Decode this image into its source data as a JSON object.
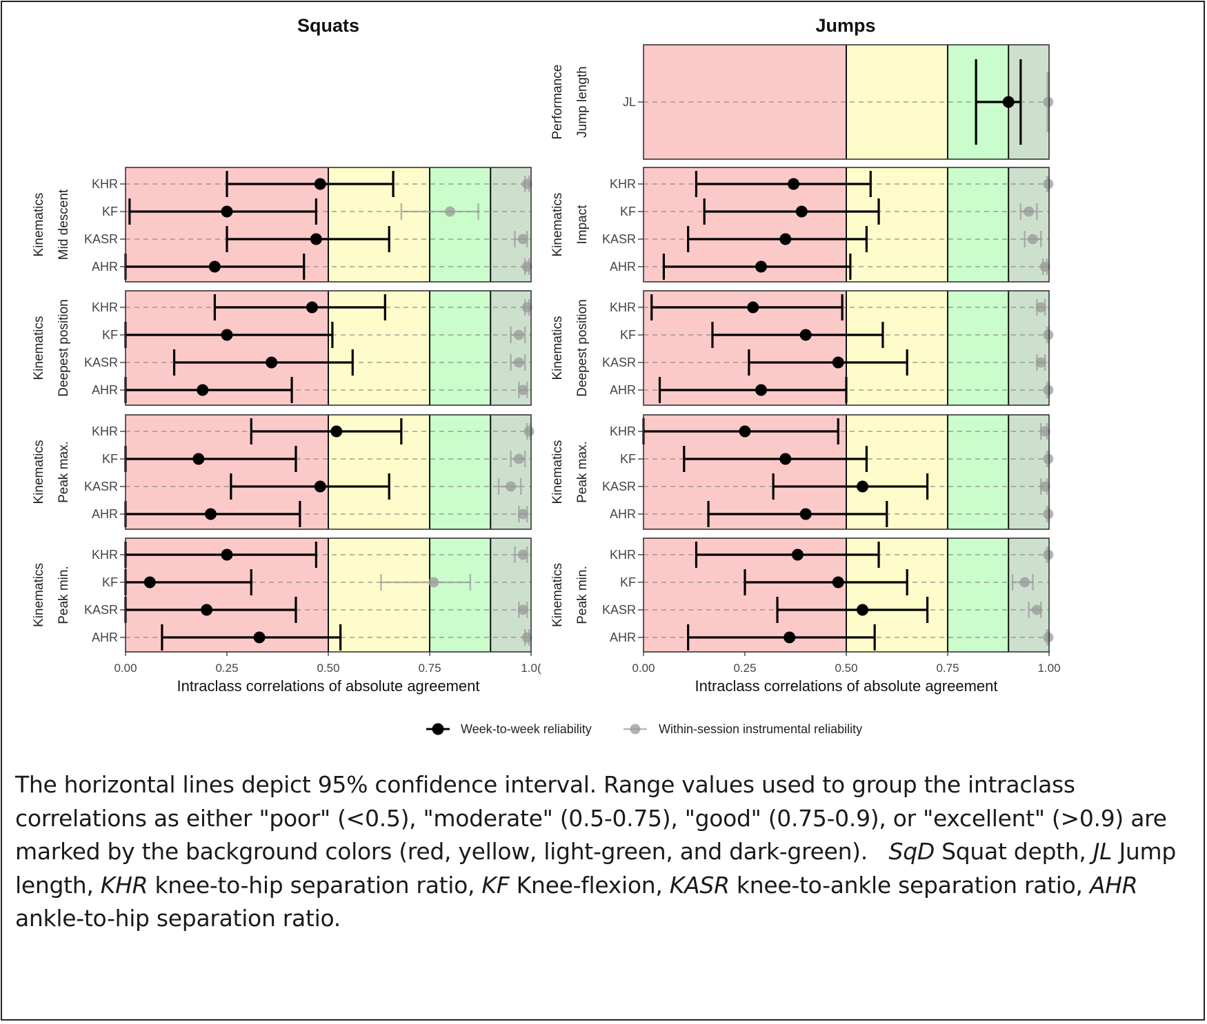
{
  "colors": {
    "poor": "#fcc9c9",
    "moderate": "#fdfcca",
    "good": "#cbfccb",
    "excellent": "#cde0cd",
    "week": "#000000",
    "within": "#9a9a9a"
  },
  "chart_data": {
    "type": "forest",
    "xlabel": "Intraclass correlations of absolute agreement",
    "xlim": [
      0,
      1
    ],
    "thresholds": [
      0.5,
      0.75,
      0.9
    ],
    "ticks": [
      {
        "value": 0,
        "label": "0.00"
      },
      {
        "value": 0.25,
        "label": "0.25"
      },
      {
        "value": 0.5,
        "label": "0.50"
      },
      {
        "value": 0.75,
        "label": "0.75"
      },
      {
        "value": 1,
        "label": "1.00"
      }
    ],
    "squats_tick_last_label": "1.0(",
    "legend": {
      "week": "Week-to-week reliability",
      "within": "Within-session instrumental reliability"
    },
    "columns": [
      {
        "title": "Squats",
        "panels": [
          {
            "strip1": "Kinematics",
            "strip2": "Mid descent",
            "rows": [
              {
                "label": "KHR",
                "week": [
                  0.48,
                  0.25,
                  0.66
                ],
                "within": [
                  0.99,
                  0.985,
                  0.995
                ]
              },
              {
                "label": "KF",
                "week": [
                  0.25,
                  0.01,
                  0.47
                ],
                "within": [
                  0.8,
                  0.68,
                  0.87
                ]
              },
              {
                "label": "KASR",
                "week": [
                  0.47,
                  0.25,
                  0.65
                ],
                "within": [
                  0.98,
                  0.96,
                  0.99
                ]
              },
              {
                "label": "AHR",
                "week": [
                  0.22,
                  0.0,
                  0.44
                ],
                "within": [
                  0.99,
                  0.985,
                  0.995
                ]
              }
            ]
          },
          {
            "strip1": "Kinematics",
            "strip2": "Deepest position",
            "rows": [
              {
                "label": "KHR",
                "week": [
                  0.46,
                  0.22,
                  0.64
                ],
                "within": [
                  0.99,
                  0.985,
                  0.995
                ]
              },
              {
                "label": "KF",
                "week": [
                  0.25,
                  0.0,
                  0.51
                ],
                "within": [
                  0.97,
                  0.95,
                  0.985
                ]
              },
              {
                "label": "KASR",
                "week": [
                  0.36,
                  0.12,
                  0.56
                ],
                "within": [
                  0.97,
                  0.95,
                  0.985
                ]
              },
              {
                "label": "AHR",
                "week": [
                  0.19,
                  0.0,
                  0.41
                ],
                "within": [
                  0.98,
                  0.97,
                  0.99
                ]
              }
            ]
          },
          {
            "strip1": "Kinematics",
            "strip2": "Peak max.",
            "rows": [
              {
                "label": "KHR",
                "week": [
                  0.52,
                  0.31,
                  0.68
                ],
                "within": [
                  0.995,
                  0.99,
                  0.998
                ]
              },
              {
                "label": "KF",
                "week": [
                  0.18,
                  0.0,
                  0.42
                ],
                "within": [
                  0.97,
                  0.95,
                  0.985
                ]
              },
              {
                "label": "KASR",
                "week": [
                  0.48,
                  0.26,
                  0.65
                ],
                "within": [
                  0.95,
                  0.92,
                  0.975
                ]
              },
              {
                "label": "AHR",
                "week": [
                  0.21,
                  0.0,
                  0.43
                ],
                "within": [
                  0.98,
                  0.97,
                  0.99
                ]
              }
            ]
          },
          {
            "strip1": "Kinematics",
            "strip2": "Peak min.",
            "rows": [
              {
                "label": "KHR",
                "week": [
                  0.25,
                  0.0,
                  0.47
                ],
                "within": [
                  0.98,
                  0.96,
                  0.99
                ]
              },
              {
                "label": "KF",
                "week": [
                  0.06,
                  0.0,
                  0.31
                ],
                "within": [
                  0.76,
                  0.63,
                  0.85
                ]
              },
              {
                "label": "KASR",
                "week": [
                  0.2,
                  0.0,
                  0.42
                ],
                "within": [
                  0.98,
                  0.97,
                  0.99
                ]
              },
              {
                "label": "AHR",
                "week": [
                  0.33,
                  0.09,
                  0.53
                ],
                "within": [
                  0.99,
                  0.985,
                  0.995
                ]
              }
            ]
          }
        ]
      },
      {
        "title": "Jumps",
        "panels": [
          {
            "strip1": "Performance",
            "strip2": "Jump length",
            "rows": [
              {
                "label": "JL",
                "week": [
                  0.9,
                  0.82,
                  0.93
                ],
                "within": [
                  0.998,
                  0.996,
                  1.0
                ]
              }
            ]
          },
          {
            "strip1": "Kinematics",
            "strip2": "Impact",
            "rows": [
              {
                "label": "KHR",
                "week": [
                  0.37,
                  0.13,
                  0.56
                ],
                "within": [
                  0.998,
                  0.995,
                  1.0
                ]
              },
              {
                "label": "KF",
                "week": [
                  0.39,
                  0.15,
                  0.58
                ],
                "within": [
                  0.95,
                  0.93,
                  0.97
                ]
              },
              {
                "label": "KASR",
                "week": [
                  0.35,
                  0.11,
                  0.55
                ],
                "within": [
                  0.96,
                  0.94,
                  0.98
                ]
              },
              {
                "label": "AHR",
                "week": [
                  0.29,
                  0.05,
                  0.51
                ],
                "within": [
                  0.99,
                  0.985,
                  0.995
                ]
              }
            ]
          },
          {
            "strip1": "Kinematics",
            "strip2": "Deepest position",
            "rows": [
              {
                "label": "KHR",
                "week": [
                  0.27,
                  0.02,
                  0.49
                ],
                "within": [
                  0.98,
                  0.97,
                  0.99
                ]
              },
              {
                "label": "KF",
                "week": [
                  0.4,
                  0.17,
                  0.59
                ],
                "within": [
                  0.998,
                  0.995,
                  1.0
                ]
              },
              {
                "label": "KASR",
                "week": [
                  0.48,
                  0.26,
                  0.65
                ],
                "within": [
                  0.98,
                  0.97,
                  0.99
                ]
              },
              {
                "label": "AHR",
                "week": [
                  0.29,
                  0.04,
                  0.5
                ],
                "within": [
                  0.998,
                  0.995,
                  1.0
                ]
              }
            ]
          },
          {
            "strip1": "Kinematics",
            "strip2": "Peak max.",
            "rows": [
              {
                "label": "KHR",
                "week": [
                  0.25,
                  0.0,
                  0.48
                ],
                "within": [
                  0.99,
                  0.98,
                  0.995
                ]
              },
              {
                "label": "KF",
                "week": [
                  0.35,
                  0.1,
                  0.55
                ],
                "within": [
                  0.998,
                  0.995,
                  1.0
                ]
              },
              {
                "label": "KASR",
                "week": [
                  0.54,
                  0.32,
                  0.7
                ],
                "within": [
                  0.99,
                  0.98,
                  0.995
                ]
              },
              {
                "label": "AHR",
                "week": [
                  0.4,
                  0.16,
                  0.6
                ],
                "within": [
                  0.998,
                  0.995,
                  1.0
                ]
              }
            ]
          },
          {
            "strip1": "Kinematics",
            "strip2": "Peak min.",
            "rows": [
              {
                "label": "KHR",
                "week": [
                  0.38,
                  0.13,
                  0.58
                ],
                "within": [
                  0.998,
                  0.995,
                  1.0
                ]
              },
              {
                "label": "KF",
                "week": [
                  0.48,
                  0.25,
                  0.65
                ],
                "within": [
                  0.94,
                  0.91,
                  0.96
                ]
              },
              {
                "label": "KASR",
                "week": [
                  0.54,
                  0.33,
                  0.7
                ],
                "within": [
                  0.97,
                  0.95,
                  0.98
                ]
              },
              {
                "label": "AHR",
                "week": [
                  0.36,
                  0.11,
                  0.57
                ],
                "within": [
                  0.998,
                  0.995,
                  1.0
                ]
              }
            ]
          }
        ]
      }
    ]
  },
  "caption": {
    "p1": "The horizontal lines depict 95% confidence interval. Range values used to group the intraclass correlations as either \"poor\" (<0.5), \"moderate\" (0.5-0.75), \"good\" (0.75-0.9), or \"excellent\" (>0.9) are marked by the background colors (red, yellow, light-green, and dark-green).",
    "defs": [
      {
        "abbr": "SqD",
        "text": "Squat depth,"
      },
      {
        "abbr": "JL",
        "text": "Jump length,"
      },
      {
        "abbr": "KHR",
        "text": "knee-to-hip separation ratio,"
      },
      {
        "abbr": "KF",
        "text": "Knee-flexion,"
      },
      {
        "abbr": "KASR",
        "text": "knee-to-ankle separation ratio,"
      },
      {
        "abbr": "AHR",
        "text": "ankle-to-hip separation ratio."
      }
    ]
  }
}
